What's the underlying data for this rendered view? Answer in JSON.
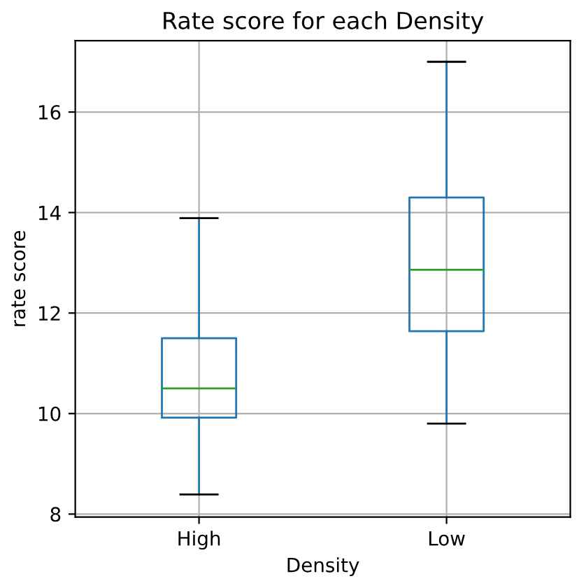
{
  "chart_data": {
    "type": "box",
    "title": "Rate score for each Density",
    "xlabel": "Density",
    "ylabel": "rate score",
    "categories": [
      "High",
      "Low"
    ],
    "boxes": [
      {
        "low": 8.39,
        "q1": 9.92,
        "median": 10.5,
        "q3": 11.5,
        "high": 13.89
      },
      {
        "low": 9.8,
        "q1": 11.64,
        "median": 12.86,
        "q3": 14.3,
        "high": 17.0
      }
    ],
    "color": "#1f77b4",
    "ylim": [
      7.94,
      17.42
    ],
    "yticks": [
      8,
      10,
      12,
      14,
      16
    ],
    "grid": true
  }
}
